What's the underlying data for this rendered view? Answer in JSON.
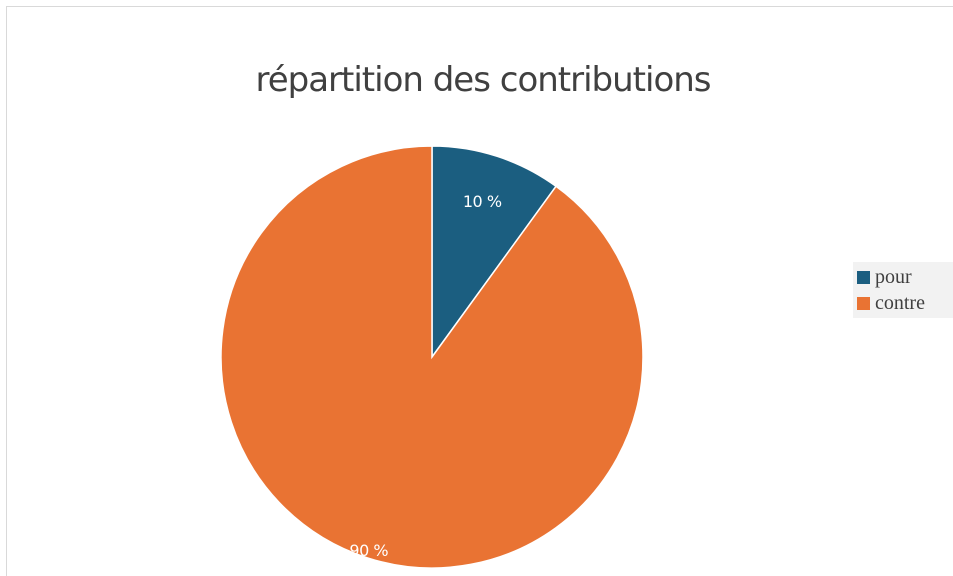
{
  "chart_data": {
    "type": "pie",
    "title": "répartition des contributions",
    "categories": [
      "pour",
      "contre"
    ],
    "values": [
      10,
      90
    ],
    "data_labels": [
      "10 %",
      "90 %"
    ],
    "colors": [
      "#1b5e80",
      "#e97333"
    ],
    "legend_position": "right"
  }
}
